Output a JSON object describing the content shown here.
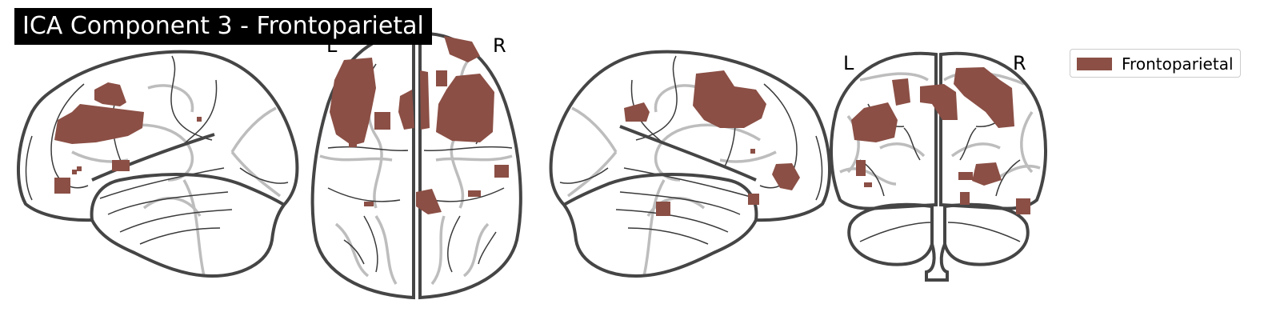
{
  "title": "ICA Component 3 - Frontoparietal",
  "views": {
    "axial": {
      "left_label": "L",
      "right_label": "R"
    },
    "coronal": {
      "left_label": "L",
      "right_label": "R"
    }
  },
  "legend": {
    "label": "Frontoparietal",
    "color": "#8b4f45"
  },
  "colors": {
    "activation": "#8b4f45",
    "outline": "#454545",
    "sulcus": "#3a3a3a",
    "glass": "#bdbdbd"
  }
}
